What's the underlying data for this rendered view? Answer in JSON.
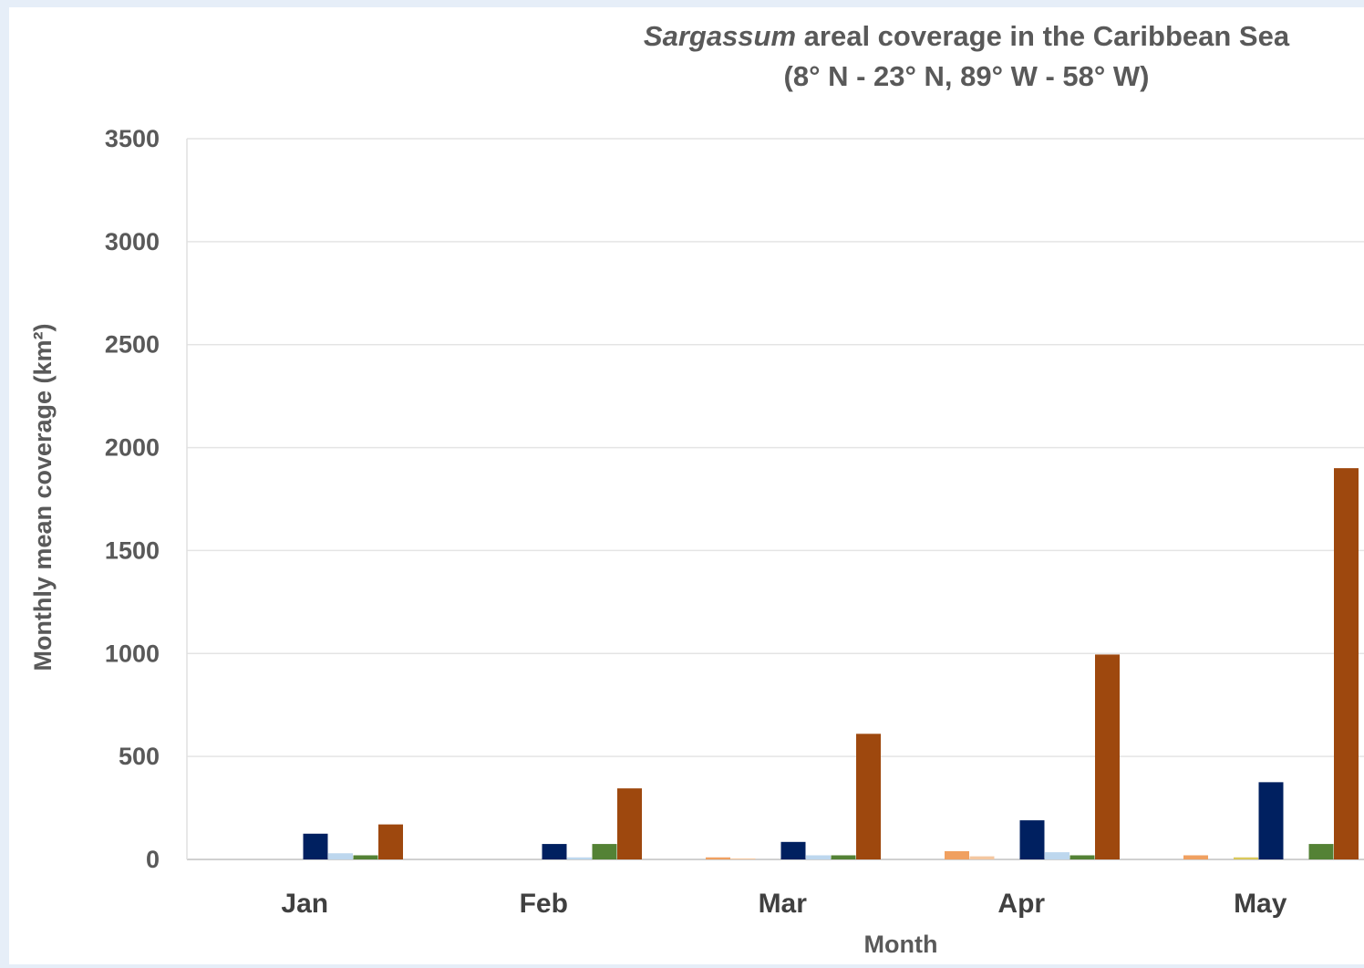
{
  "chart_data": {
    "type": "bar",
    "title_italic": "Sargassum",
    "title_rest": " areal coverage in the Caribbean Sea",
    "subtitle": "(8° N - 23° N, 89° W - 58° W)",
    "xlabel": "Month",
    "ylabel": "Monthly mean coverage (km²)",
    "ylim": [
      0,
      3500
    ],
    "yticks": [
      0,
      500,
      1000,
      1500,
      2000,
      2500,
      3000,
      3500
    ],
    "grid": true,
    "legend": "none",
    "categories": [
      "Jan",
      "Feb",
      "Mar",
      "Apr",
      "May"
    ],
    "series": [
      {
        "color": "#f0a060",
        "values": [
          0,
          0,
          10,
          40,
          20
        ]
      },
      {
        "color": "#f4c7a0",
        "values": [
          0,
          0,
          5,
          15,
          0
        ]
      },
      {
        "color": "#d9c85a",
        "values": [
          0,
          0,
          0,
          0,
          10
        ]
      },
      {
        "color": "#002060",
        "values": [
          125,
          75,
          85,
          190,
          375
        ]
      },
      {
        "color": "#bdd7ee",
        "values": [
          30,
          10,
          20,
          35,
          0
        ]
      },
      {
        "color": "#548235",
        "values": [
          20,
          75,
          20,
          20,
          75
        ]
      },
      {
        "color": "#9e480e",
        "values": [
          170,
          345,
          610,
          995,
          1900
        ]
      }
    ]
  }
}
